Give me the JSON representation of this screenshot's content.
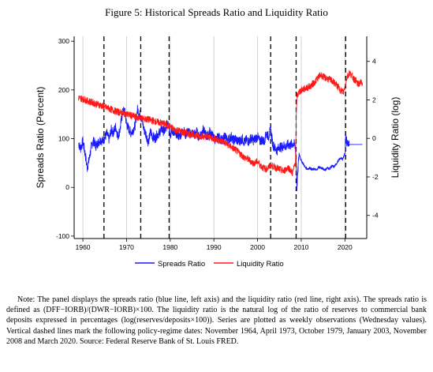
{
  "figure_title": "Figure 5: Historical Spreads Ratio and Liquidity Ratio",
  "note": "Note: The panel displays the spreads ratio (blue line, left axis) and the liquidity ratio (red line, right axis). The spreads ratio is defined as (DFF−IORB)/(DWR−IORB)×100. The liquidity ratio is the natural log of the ratio of reserves to commercial bank deposits expressed in percentages (log(reserves/deposits×100)). Series are plotted as weekly observations (Wednesday values). Vertical dashed lines mark the following policy-regime dates: November 1964, April 1973, October 1979, January 2003, November 2008 and March 2020. Source: Federal Reserve Bank of St. Louis FRED.",
  "chart_data": {
    "type": "line",
    "xlabel": "",
    "ylabel_left": "Spreads Ratio (Percent)",
    "ylabel_right": "Liquidity Ratio (log)",
    "xlim": [
      1958,
      2025
    ],
    "ylim_left": [
      -105,
      310
    ],
    "ylim_right": [
      -5.2,
      5.3
    ],
    "x_ticks": [
      "1960",
      "1970",
      "1980",
      "1990",
      "2000",
      "2010",
      "2020"
    ],
    "y_left_ticks": [
      "-100",
      "0",
      "100",
      "200",
      "300"
    ],
    "y_right_ticks": [
      "-4",
      "-2",
      "0",
      "2",
      "4"
    ],
    "grid": "vertical",
    "dashed_lines": [
      1964.83,
      1973.25,
      1979.75,
      2003.0,
      2008.83,
      2020.17
    ],
    "legend": [
      "Spreads Ratio",
      "Liquidity Ratio"
    ],
    "legend_position": "bottom",
    "series": [
      {
        "name": "Spreads Ratio",
        "axis": "left",
        "color": "#1a1aff",
        "x": [
          1959.0,
          1959.5,
          1960.0,
          1960.5,
          1961.0,
          1961.5,
          1962.0,
          1962.5,
          1963.0,
          1963.5,
          1964.0,
          1964.5,
          1965.0,
          1965.5,
          1966.0,
          1966.5,
          1967.0,
          1967.5,
          1968.0,
          1968.5,
          1969.0,
          1969.5,
          1970.0,
          1970.5,
          1971.0,
          1971.5,
          1972.0,
          1972.5,
          1973.0,
          1973.5,
          1974.0,
          1974.5,
          1975.0,
          1975.5,
          1976.0,
          1976.5,
          1977.0,
          1977.5,
          1978.0,
          1978.5,
          1979.0,
          1979.5,
          1980.0,
          1980.5,
          1981.0,
          1981.5,
          1982.0,
          1982.5,
          1983.0,
          1983.5,
          1984.0,
          1984.5,
          1985.0,
          1985.5,
          1986.0,
          1986.5,
          1987.0,
          1987.5,
          1988.0,
          1988.5,
          1989.0,
          1989.5,
          1990.0,
          1990.5,
          1991.0,
          1991.5,
          1992.0,
          1992.5,
          1993.0,
          1993.5,
          1994.0,
          1994.5,
          1995.0,
          1995.5,
          1996.0,
          1996.5,
          1997.0,
          1997.5,
          1998.0,
          1998.5,
          1999.0,
          1999.5,
          2000.0,
          2000.5,
          2001.0,
          2001.5,
          2002.0,
          2002.5,
          2003.0,
          2003.5,
          2004.0,
          2004.5,
          2005.0,
          2005.5,
          2006.0,
          2006.5,
          2007.0,
          2007.5,
          2008.0,
          2008.5,
          2008.8,
          2009.0,
          2009.5,
          2010.0,
          2010.5,
          2011.0,
          2011.5,
          2012.0,
          2012.5,
          2013.0,
          2013.5,
          2014.0,
          2014.5,
          2015.0,
          2015.5,
          2016.0,
          2016.5,
          2017.0,
          2017.5,
          2018.0,
          2018.5,
          2019.0,
          2019.5,
          2020.0,
          2020.2,
          2020.5,
          2021.0,
          2021.5,
          2022.0,
          2022.5,
          2023.0,
          2023.5,
          2024.0
        ],
        "y": [
          90,
          80,
          95,
          70,
          40,
          60,
          88,
          95,
          85,
          92,
          98,
          95,
          102,
          110,
          98,
          118,
          112,
          125,
          105,
          118,
          150,
          160,
          130,
          120,
          112,
          118,
          128,
          160,
          150,
          140,
          118,
          108,
          92,
          115,
          104,
          100,
          108,
          112,
          120,
          115,
          118,
          140,
          108,
          118,
          108,
          112,
          104,
          110,
          118,
          108,
          115,
          110,
          112,
          108,
          115,
          104,
          110,
          118,
          110,
          104,
          115,
          108,
          102,
          96,
          104,
          100,
          94,
          108,
          96,
          100,
          104,
          96,
          100,
          94,
          96,
          100,
          92,
          98,
          94,
          102,
          96,
          100,
          104,
          94,
          98,
          94,
          112,
          104,
          118,
          88,
          80,
          76,
          84,
          82,
          86,
          84,
          88,
          86,
          90,
          88,
          70,
          0,
          70,
          55,
          48,
          40,
          38,
          40,
          36,
          38,
          35,
          42,
          40,
          38,
          36,
          40,
          38,
          44,
          42,
          48,
          55,
          60,
          58,
          70,
          100,
          92,
          88,
          88,
          88,
          88,
          88,
          88,
          88
        ]
      },
      {
        "name": "Liquidity Ratio",
        "axis": "right",
        "color": "#ff1a1a",
        "x": [
          1959.0,
          1960.0,
          1961.0,
          1962.0,
          1963.0,
          1964.0,
          1965.0,
          1966.0,
          1967.0,
          1968.0,
          1969.0,
          1970.0,
          1971.0,
          1972.0,
          1973.0,
          1974.0,
          1975.0,
          1976.0,
          1977.0,
          1978.0,
          1979.0,
          1980.0,
          1981.0,
          1982.0,
          1983.0,
          1984.0,
          1985.0,
          1986.0,
          1987.0,
          1988.0,
          1989.0,
          1990.0,
          1991.0,
          1992.0,
          1993.0,
          1994.0,
          1995.0,
          1996.0,
          1997.0,
          1998.0,
          1999.0,
          2000.0,
          2001.0,
          2002.0,
          2003.0,
          2004.0,
          2005.0,
          2006.0,
          2007.0,
          2008.0,
          2008.7,
          2008.85,
          2009.0,
          2009.5,
          2010.0,
          2011.0,
          2012.0,
          2013.0,
          2014.0,
          2014.5,
          2015.0,
          2016.0,
          2017.0,
          2018.0,
          2019.0,
          2019.7,
          2020.2,
          2020.5,
          2021.0,
          2021.5,
          2022.0,
          2022.5,
          2023.0,
          2023.5,
          2024.0
        ],
        "y": [
          2.1,
          2.05,
          1.95,
          1.88,
          1.8,
          1.72,
          1.62,
          1.55,
          1.45,
          1.38,
          1.32,
          1.26,
          1.2,
          1.12,
          1.08,
          1.0,
          0.98,
          0.92,
          0.85,
          0.8,
          0.72,
          0.6,
          0.45,
          0.4,
          0.3,
          0.25,
          0.2,
          0.15,
          0.12,
          0.1,
          0.05,
          0.0,
          -0.1,
          -0.15,
          -0.3,
          -0.45,
          -0.6,
          -0.8,
          -1.0,
          -1.1,
          -1.3,
          -1.2,
          -1.5,
          -1.6,
          -1.4,
          -1.5,
          -1.6,
          -1.7,
          -1.5,
          -1.8,
          -1.2,
          1.0,
          2.2,
          2.4,
          2.5,
          2.6,
          2.7,
          2.9,
          3.2,
          3.3,
          3.2,
          3.1,
          3.0,
          2.8,
          2.5,
          2.4,
          2.9,
          3.2,
          3.4,
          3.3,
          3.1,
          3.0,
          2.8,
          2.9,
          2.9
        ]
      }
    ]
  }
}
